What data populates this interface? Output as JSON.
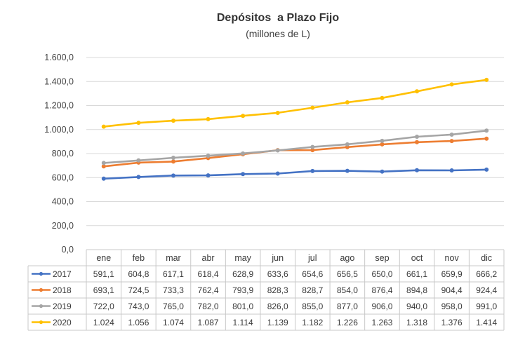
{
  "chart_data": {
    "type": "line",
    "title": "Depósitos  a Plazo Fijo",
    "subtitle": "(millones de L)",
    "categories": [
      "ene",
      "feb",
      "mar",
      "abr",
      "may",
      "jun",
      "jul",
      "ago",
      "sep",
      "oct",
      "nov",
      "dic"
    ],
    "ylim": [
      0,
      1600
    ],
    "yticks": [
      "0,0",
      "200,0",
      "400,0",
      "600,0",
      "800,0",
      "1.000,0",
      "1.200,0",
      "1.400,0",
      "1.600,0"
    ],
    "grid": true,
    "legend": "data-table",
    "series": [
      {
        "name": "2017",
        "color": "#4472C4",
        "values": [
          591.1,
          604.8,
          617.1,
          618.4,
          628.9,
          633.6,
          654.6,
          656.5,
          650.0,
          661.1,
          659.9,
          666.2
        ],
        "labels": [
          "591,1",
          "604,8",
          "617,1",
          "618,4",
          "628,9",
          "633,6",
          "654,6",
          "656,5",
          "650,0",
          "661,1",
          "659,9",
          "666,2"
        ]
      },
      {
        "name": "2018",
        "color": "#ED7D31",
        "values": [
          693.1,
          724.5,
          733.3,
          762.4,
          793.9,
          828.3,
          828.7,
          854.0,
          876.4,
          894.8,
          904.4,
          924.4
        ],
        "labels": [
          "693,1",
          "724,5",
          "733,3",
          "762,4",
          "793,9",
          "828,3",
          "828,7",
          "854,0",
          "876,4",
          "894,8",
          "904,4",
          "924,4"
        ]
      },
      {
        "name": "2019",
        "color": "#A5A5A5",
        "values": [
          722.0,
          743.0,
          765.0,
          782.0,
          801.0,
          826.0,
          855.0,
          877.0,
          906.0,
          940.0,
          958.0,
          991.0
        ],
        "labels": [
          "722,0",
          "743,0",
          "765,0",
          "782,0",
          "801,0",
          "826,0",
          "855,0",
          "877,0",
          "906,0",
          "940,0",
          "958,0",
          "991,0"
        ]
      },
      {
        "name": "2020",
        "color": "#FFC000",
        "values": [
          1024,
          1056,
          1074,
          1087,
          1114,
          1139,
          1182,
          1226,
          1263,
          1318,
          1376,
          1414
        ],
        "labels": [
          "1.024",
          "1.056",
          "1.074",
          "1.087",
          "1.114",
          "1.139",
          "1.182",
          "1.226",
          "1.263",
          "1.318",
          "1.376",
          "1.414"
        ]
      }
    ]
  }
}
